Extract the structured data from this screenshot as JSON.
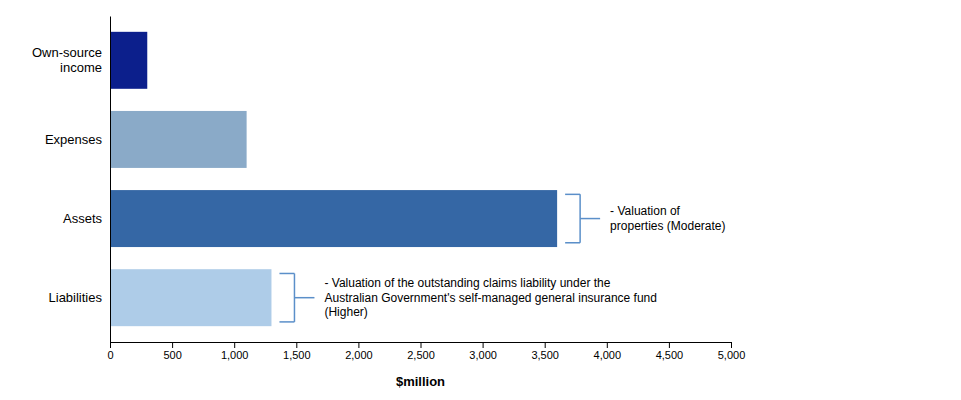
{
  "chart_data": {
    "type": "bar",
    "orientation": "horizontal",
    "categories": [
      "Own-source\nincome",
      "Expenses",
      "Assets",
      "Liabilities"
    ],
    "values": [
      300,
      1100,
      3600,
      1300
    ],
    "colors": [
      "#0C1F8C",
      "#8AAAC8",
      "#3567A5",
      "#AECCE8"
    ],
    "xlim": [
      0,
      5000
    ],
    "xticks": [
      0,
      500,
      {
        "value": 1000,
        "label": "1,000"
      },
      {
        "value": 1500,
        "label": "1,500"
      },
      {
        "value": 2000,
        "label": "2,000"
      },
      {
        "value": 2500,
        "label": "2,500"
      },
      {
        "value": 3000,
        "label": "3,000"
      },
      {
        "value": 3500,
        "label": "3,500"
      },
      {
        "value": 4000,
        "label": "4,000"
      },
      {
        "value": 4500,
        "label": "4,500"
      },
      {
        "value": 5000,
        "label": "5,000"
      }
    ],
    "xlabel": "$million",
    "annotations": [
      {
        "text": "- Valuation of\nproperties (Moderate)",
        "x": 3600,
        "y": "Assets",
        "color": "#5B8FC9"
      },
      {
        "text": "- Valuation of the outstanding claims liability under the\nAustralian Government's self-managed general insurance fund\n(Higher)",
        "x": 1300,
        "y": "Liabilities",
        "color": "#5B8FC9"
      }
    ]
  }
}
